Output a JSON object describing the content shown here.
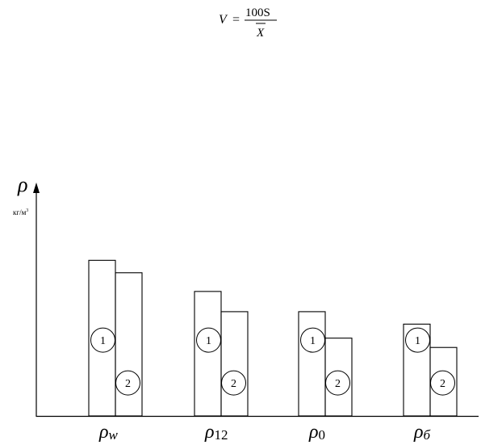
{
  "formula": {
    "lhs": "V",
    "eq": "=",
    "numerator": "100S",
    "denominator": "X"
  },
  "chart_data": {
    "type": "bar",
    "axis_symbol": "ρ",
    "ylabel": "кг/м",
    "ylabel_sup": "3",
    "categories": [
      {
        "sym": "ρ",
        "sub": "w"
      },
      {
        "sym": "ρ",
        "sub": "12"
      },
      {
        "sym": "ρ",
        "sub": "0"
      },
      {
        "sym": "ρ",
        "sub": "б"
      }
    ],
    "series": [
      {
        "marker": "1",
        "values": [
          100,
          80,
          67,
          59
        ]
      },
      {
        "marker": "2",
        "values": [
          92,
          67,
          50,
          44
        ]
      }
    ],
    "ylim": [
      0,
      150
    ],
    "grid": false
  }
}
